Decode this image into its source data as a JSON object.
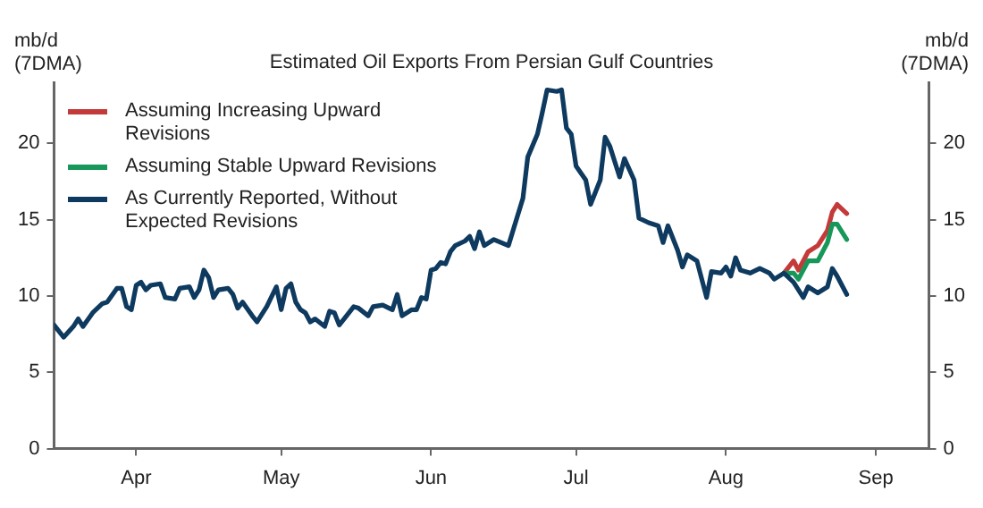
{
  "chart_data": {
    "type": "line",
    "title": "Estimated Oil Exports From Persian Gulf Countries",
    "ylabel": "mb/d\n(7DMA)",
    "y2label": "mb/d\n(7DMA)",
    "xlim": [
      "--03-15",
      "--09-12"
    ],
    "xticks": [
      {
        "value": "--04-01",
        "label": "Apr"
      },
      {
        "value": "--05-01",
        "label": "May"
      },
      {
        "value": "--06-01",
        "label": "Jun"
      },
      {
        "value": "--07-01",
        "label": "Jul"
      },
      {
        "value": "--08-01",
        "label": "Aug"
      },
      {
        "value": "--09-01",
        "label": "Sep"
      }
    ],
    "ylim": [
      0,
      24
    ],
    "yticks": [
      0,
      5,
      10,
      15,
      20
    ],
    "y2lim": [
      0,
      24
    ],
    "y2ticks": [
      0,
      5,
      10,
      15,
      20
    ],
    "grid": false,
    "legend": "top left",
    "marker": "none",
    "line_style": "solid",
    "series": [
      {
        "name": "Assuming Increasing Upward Revisions",
        "color": "#c43a3a",
        "x": [
          "--08-13",
          "--08-15",
          "--08-16",
          "--08-18",
          "--08-20",
          "--08-22",
          "--08-23",
          "--08-24",
          "--08-26"
        ],
        "values": [
          11.5,
          12.3,
          11.7,
          12.9,
          13.3,
          14.3,
          15.5,
          16.0,
          15.4
        ]
      },
      {
        "name": "Assuming Stable Upward Revisions",
        "color": "#17985a",
        "x": [
          "--08-13",
          "--08-15",
          "--08-16",
          "--08-18",
          "--08-20",
          "--08-22",
          "--08-23",
          "--08-24",
          "--08-26"
        ],
        "values": [
          11.5,
          11.5,
          11.1,
          12.3,
          12.3,
          13.5,
          14.7,
          14.7,
          13.7
        ]
      },
      {
        "name": "As Currently Reported, Without Expected Revisions",
        "color": "#0e3a5f",
        "x": [
          "--03-15",
          "--03-17",
          "--03-19",
          "--03-20",
          "--03-21",
          "--03-23",
          "--03-25",
          "--03-26",
          "--03-28",
          "--03-29",
          "--03-30",
          "--03-31",
          "--04-01",
          "--04-02",
          "--04-03",
          "--04-04",
          "--04-06",
          "--04-07",
          "--04-09",
          "--04-10",
          "--04-12",
          "--04-13",
          "--04-14",
          "--04-15",
          "--04-16",
          "--04-17",
          "--04-18",
          "--04-20",
          "--04-21",
          "--04-22",
          "--04-23",
          "--04-25",
          "--04-26",
          "--04-28",
          "--04-30",
          "--05-01",
          "--05-02",
          "--05-03",
          "--05-04",
          "--05-05",
          "--05-06",
          "--05-07",
          "--05-08",
          "--05-10",
          "--05-11",
          "--05-12",
          "--05-13",
          "--05-14",
          "--05-16",
          "--05-17",
          "--05-19",
          "--05-20",
          "--05-22",
          "--05-24",
          "--05-25",
          "--05-26",
          "--05-28",
          "--05-29",
          "--05-30",
          "--05-31",
          "--06-01",
          "--06-02",
          "--06-03",
          "--06-04",
          "--06-05",
          "--06-06",
          "--06-08",
          "--06-09",
          "--06-10",
          "--06-11",
          "--06-12",
          "--06-14",
          "--06-17",
          "--06-20",
          "--06-21",
          "--06-23",
          "--06-24",
          "--06-25",
          "--06-27",
          "--06-28",
          "--06-29",
          "--06-30",
          "--07-01",
          "--07-03",
          "--07-04",
          "--07-06",
          "--07-07",
          "--07-08",
          "--07-10",
          "--07-11",
          "--07-13",
          "--07-14",
          "--07-16",
          "--07-18",
          "--07-19",
          "--07-20",
          "--07-22",
          "--07-23",
          "--07-24",
          "--07-26",
          "--07-28",
          "--07-29",
          "--07-31",
          "--08-01",
          "--08-02",
          "--08-03",
          "--08-04",
          "--08-06",
          "--08-08",
          "--08-10",
          "--08-11",
          "--08-13",
          "--08-15",
          "--08-17",
          "--08-18",
          "--08-20",
          "--08-22",
          "--08-23",
          "--08-24",
          "--08-26"
        ],
        "values": [
          8.1,
          7.3,
          8.0,
          8.5,
          8.0,
          8.9,
          9.5,
          9.6,
          10.5,
          10.5,
          9.3,
          9.1,
          10.7,
          10.9,
          10.4,
          10.7,
          10.8,
          9.9,
          9.8,
          10.5,
          10.6,
          9.9,
          10.4,
          11.7,
          11.2,
          9.9,
          10.4,
          10.5,
          10.1,
          9.2,
          9.6,
          8.7,
          8.3,
          9.3,
          10.6,
          9.1,
          10.5,
          10.8,
          9.6,
          9.1,
          8.9,
          8.3,
          8.5,
          8.0,
          9.0,
          8.9,
          8.1,
          8.5,
          9.3,
          9.2,
          8.7,
          9.3,
          9.4,
          9.1,
          10.1,
          8.7,
          9.1,
          9.1,
          9.9,
          9.8,
          11.7,
          11.8,
          12.2,
          12.1,
          12.9,
          13.3,
          13.6,
          13.9,
          13.1,
          14.2,
          13.3,
          13.7,
          13.3,
          16.4,
          19.1,
          20.6,
          22.0,
          23.5,
          23.4,
          23.5,
          21.0,
          20.6,
          18.5,
          17.6,
          16.0,
          17.6,
          20.4,
          19.8,
          17.8,
          19.0,
          17.6,
          15.1,
          14.8,
          14.6,
          13.5,
          14.6,
          13.0,
          11.9,
          12.7,
          12.3,
          9.9,
          11.6,
          11.5,
          11.9,
          11.3,
          12.5,
          11.7,
          11.5,
          11.8,
          11.5,
          11.1,
          11.5,
          10.9,
          9.9,
          10.6,
          10.2,
          10.6,
          11.8,
          11.3,
          10.1
        ]
      }
    ]
  }
}
